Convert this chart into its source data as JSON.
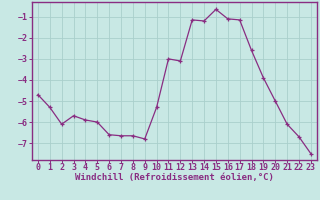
{
  "x": [
    0,
    1,
    2,
    3,
    4,
    5,
    6,
    7,
    8,
    9,
    10,
    11,
    12,
    13,
    14,
    15,
    16,
    17,
    18,
    19,
    20,
    21,
    22,
    23
  ],
  "y": [
    -4.7,
    -5.3,
    -6.1,
    -5.7,
    -5.9,
    -6.0,
    -6.6,
    -6.65,
    -6.65,
    -6.8,
    -5.3,
    -3.0,
    -3.1,
    -1.15,
    -1.2,
    -0.65,
    -1.1,
    -1.15,
    -2.6,
    -3.9,
    -5.0,
    -6.1,
    -6.7,
    -7.5
  ],
  "line_color": "#892d82",
  "marker": "+",
  "marker_size": 3,
  "bg_color": "#c8e8e4",
  "grid_color": "#aacfcc",
  "xlabel": "Windchill (Refroidissement éolien,°C)",
  "xlim": [
    -0.5,
    23.5
  ],
  "ylim": [
    -7.8,
    -0.3
  ],
  "yticks": [
    -7,
    -6,
    -5,
    -4,
    -3,
    -2,
    -1
  ],
  "xticks": [
    0,
    1,
    2,
    3,
    4,
    5,
    6,
    7,
    8,
    9,
    10,
    11,
    12,
    13,
    14,
    15,
    16,
    17,
    18,
    19,
    20,
    21,
    22,
    23
  ],
  "tick_color": "#892d82",
  "tick_label_color": "#892d82",
  "axis_color": "#892d82",
  "xlabel_color": "#892d82",
  "xlabel_fontsize": 6.5,
  "tick_fontsize": 6.0,
  "linewidth": 0.9,
  "spine_linewidth": 1.0
}
